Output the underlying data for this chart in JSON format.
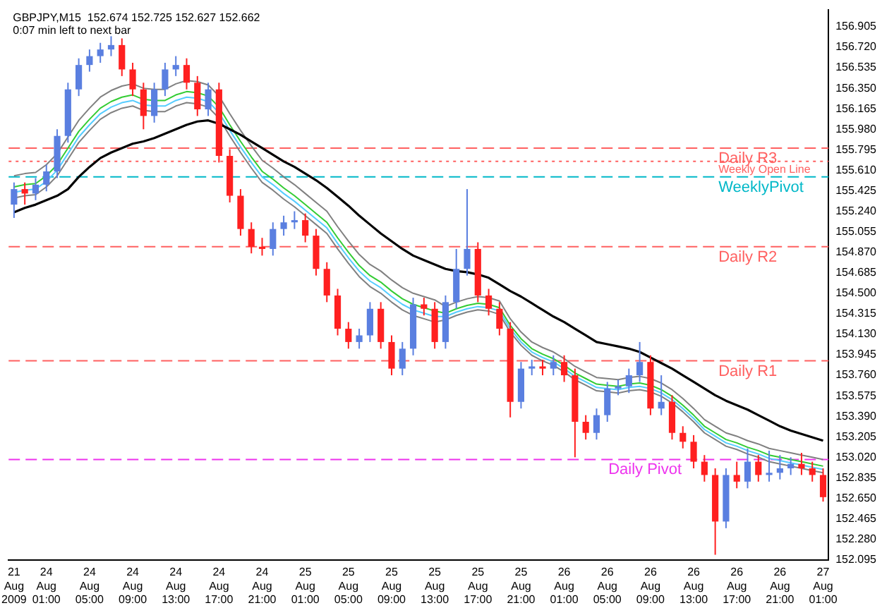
{
  "chart_data": {
    "type": "candlestick",
    "title": "GBPJPY,M15  152.674 152.725 152.627 152.662",
    "subtitle": "0:07 min left to next bar",
    "categories": [
      "21 Aug 2009",
      null,
      null,
      "24 Aug 01:00",
      null,
      null,
      null,
      "24 Aug 05:00",
      null,
      null,
      null,
      "24 Aug 09:00",
      null,
      null,
      null,
      "24 Aug 13:00",
      null,
      null,
      null,
      "24 Aug 17:00",
      null,
      null,
      null,
      "24 Aug 21:00",
      null,
      null,
      null,
      "25 Aug 01:00",
      null,
      null,
      null,
      "25 Aug 05:00",
      null,
      null,
      null,
      "25 Aug 09:00",
      null,
      null,
      null,
      "25 Aug 13:00",
      null,
      null,
      null,
      "25 Aug 17:00",
      null,
      null,
      null,
      "25 Aug 21:00",
      null,
      null,
      null,
      "26 Aug 01:00",
      null,
      null,
      null,
      "26 Aug 05:00",
      null,
      null,
      null,
      "26 Aug 09:00",
      null,
      null,
      null,
      "26 Aug 13:00",
      null,
      null,
      null,
      "26 Aug 17:00",
      null,
      null,
      null,
      "26 Aug 21:00",
      null,
      null,
      null,
      "27 Aug 01:00"
    ],
    "ohlc": [
      [
        155.3,
        155.5,
        155.18,
        155.44
      ],
      [
        155.44,
        155.5,
        155.3,
        155.4
      ],
      [
        155.4,
        155.54,
        155.34,
        155.48
      ],
      [
        155.48,
        155.66,
        155.42,
        155.6
      ],
      [
        155.6,
        155.98,
        155.54,
        155.92
      ],
      [
        155.92,
        156.4,
        155.86,
        156.34
      ],
      [
        156.34,
        156.62,
        156.28,
        156.56
      ],
      [
        156.56,
        156.7,
        156.5,
        156.64
      ],
      [
        156.64,
        156.76,
        156.58,
        156.7
      ],
      [
        156.7,
        156.82,
        156.64,
        156.74
      ],
      [
        156.74,
        156.8,
        156.46,
        156.52
      ],
      [
        156.52,
        156.58,
        156.28,
        156.34
      ],
      [
        156.34,
        156.4,
        155.98,
        156.1
      ],
      [
        156.1,
        156.4,
        156.04,
        156.34
      ],
      [
        156.34,
        156.58,
        156.28,
        156.52
      ],
      [
        156.52,
        156.64,
        156.46,
        156.56
      ],
      [
        156.56,
        156.62,
        156.34,
        156.4
      ],
      [
        156.4,
        156.46,
        156.1,
        156.16
      ],
      [
        156.16,
        156.4,
        156.1,
        156.34
      ],
      [
        156.34,
        156.4,
        155.68,
        155.74
      ],
      [
        155.74,
        155.8,
        155.32,
        155.38
      ],
      [
        155.38,
        155.44,
        155.02,
        155.08
      ],
      [
        155.08,
        155.14,
        154.86,
        154.92
      ],
      [
        154.92,
        155.0,
        154.84,
        154.9
      ],
      [
        154.9,
        155.14,
        154.84,
        155.08
      ],
      [
        155.08,
        155.2,
        155.02,
        155.14
      ],
      [
        155.14,
        155.24,
        155.08,
        155.16
      ],
      [
        155.16,
        155.22,
        154.96,
        155.02
      ],
      [
        155.02,
        155.08,
        154.66,
        154.72
      ],
      [
        154.72,
        154.78,
        154.42,
        154.48
      ],
      [
        154.48,
        154.54,
        154.12,
        154.18
      ],
      [
        154.18,
        154.24,
        154.0,
        154.06
      ],
      [
        154.06,
        154.18,
        154.0,
        154.12
      ],
      [
        154.12,
        154.42,
        154.06,
        154.36
      ],
      [
        154.36,
        154.42,
        154.0,
        154.06
      ],
      [
        154.06,
        154.12,
        153.76,
        153.82
      ],
      [
        153.82,
        154.06,
        153.76,
        154.0
      ],
      [
        154.0,
        154.46,
        153.94,
        154.4
      ],
      [
        154.4,
        154.46,
        154.3,
        154.36
      ],
      [
        154.36,
        154.42,
        154.0,
        154.06
      ],
      [
        154.06,
        154.48,
        154.0,
        154.42
      ],
      [
        154.42,
        154.9,
        154.36,
        154.72
      ],
      [
        154.72,
        155.44,
        154.66,
        154.9
      ],
      [
        154.9,
        154.96,
        154.42,
        154.48
      ],
      [
        154.48,
        154.54,
        154.3,
        154.36
      ],
      [
        154.36,
        154.42,
        154.12,
        154.18
      ],
      [
        154.18,
        154.24,
        153.38,
        153.52
      ],
      [
        153.52,
        153.88,
        153.46,
        153.82
      ],
      [
        153.82,
        153.9,
        153.76,
        153.84
      ],
      [
        153.84,
        153.9,
        153.76,
        153.82
      ],
      [
        153.82,
        153.94,
        153.76,
        153.88
      ],
      [
        153.88,
        153.94,
        153.7,
        153.76
      ],
      [
        153.76,
        153.82,
        153.02,
        153.34
      ],
      [
        153.34,
        153.4,
        153.18,
        153.24
      ],
      [
        153.24,
        153.46,
        153.18,
        153.4
      ],
      [
        153.4,
        153.7,
        153.34,
        153.64
      ],
      [
        153.64,
        153.72,
        153.58,
        153.66
      ],
      [
        153.66,
        153.82,
        153.6,
        153.76
      ],
      [
        153.76,
        154.06,
        153.7,
        153.88
      ],
      [
        153.88,
        153.94,
        153.4,
        153.46
      ],
      [
        153.46,
        153.76,
        153.4,
        153.52
      ],
      [
        153.52,
        153.58,
        153.18,
        153.24
      ],
      [
        153.24,
        153.3,
        153.1,
        153.16
      ],
      [
        153.16,
        153.22,
        152.92,
        152.98
      ],
      [
        152.98,
        153.04,
        152.8,
        152.86
      ],
      [
        152.86,
        152.92,
        152.14,
        152.44
      ],
      [
        152.44,
        152.92,
        152.38,
        152.86
      ],
      [
        152.86,
        152.98,
        152.74,
        152.8
      ],
      [
        152.8,
        153.1,
        152.74,
        152.98
      ],
      [
        152.98,
        153.04,
        152.8,
        152.86
      ],
      [
        152.86,
        153.08,
        152.8,
        152.88
      ],
      [
        152.88,
        153.04,
        152.82,
        152.92
      ],
      [
        152.92,
        153.02,
        152.86,
        152.96
      ],
      [
        152.96,
        153.06,
        152.86,
        152.92
      ],
      [
        152.92,
        152.98,
        152.8,
        152.86
      ],
      [
        152.86,
        152.92,
        152.62,
        152.66
      ]
    ],
    "colors": [
      "#5a7fe0",
      "#ff2020",
      "#5a7fe0",
      "#5a7fe0",
      "#5a7fe0",
      "#5a7fe0",
      "#5a7fe0",
      "#5a7fe0",
      "#5a7fe0",
      "#5a7fe0",
      "#ff2020",
      "#ff2020",
      "#ff2020",
      "#5a7fe0",
      "#5a7fe0",
      "#5a7fe0",
      "#ff2020",
      "#ff2020",
      "#5a7fe0",
      "#ff2020",
      "#ff2020",
      "#ff2020",
      "#ff2020",
      "#ff2020",
      "#5a7fe0",
      "#5a7fe0",
      "#5a7fe0",
      "#ff2020",
      "#ff2020",
      "#ff2020",
      "#ff2020",
      "#ff2020",
      "#5a7fe0",
      "#5a7fe0",
      "#ff2020",
      "#ff2020",
      "#5a7fe0",
      "#5a7fe0",
      "#ff2020",
      "#ff2020",
      "#5a7fe0",
      "#5a7fe0",
      "#5a7fe0",
      "#ff2020",
      "#ff2020",
      "#ff2020",
      "#ff2020",
      "#5a7fe0",
      "#5a7fe0",
      "#ff2020",
      "#5a7fe0",
      "#ff2020",
      "#ff2020",
      "#ff2020",
      "#5a7fe0",
      "#5a7fe0",
      "#5a7fe0",
      "#5a7fe0",
      "#5a7fe0",
      "#ff2020",
      "#5a7fe0",
      "#ff2020",
      "#ff2020",
      "#ff2020",
      "#ff2020",
      "#ff2020",
      "#5a7fe0",
      "#ff2020",
      "#5a7fe0",
      "#ff2020",
      "#5a7fe0",
      "#5a7fe0",
      "#5a7fe0",
      "#ff2020",
      "#ff2020",
      "#ff2020"
    ],
    "series": [
      {
        "type": "line",
        "color": "#000000",
        "values": [
          155.23,
          155.27,
          155.3,
          155.34,
          155.38,
          155.44,
          155.55,
          155.64,
          155.72,
          155.77,
          155.81,
          155.85,
          155.87,
          155.9,
          155.94,
          155.98,
          156.02,
          156.05,
          156.06,
          156.03,
          155.98,
          155.93,
          155.87,
          155.81,
          155.75,
          155.69,
          155.64,
          155.58,
          155.52,
          155.45,
          155.37,
          155.29,
          155.2,
          155.12,
          155.04,
          154.97,
          154.9,
          154.84,
          154.8,
          154.76,
          154.72,
          154.7,
          154.69,
          154.67,
          154.64,
          154.58,
          154.52,
          154.47,
          154.41,
          154.35,
          154.29,
          154.24,
          154.18,
          154.12,
          154.06,
          154.04,
          154.02,
          154.0,
          153.97,
          153.92,
          153.87,
          153.82,
          153.76,
          153.7,
          153.64,
          153.58,
          153.53,
          153.49,
          153.45,
          153.4,
          153.35,
          153.3,
          153.26,
          153.23,
          153.2,
          153.17
        ]
      },
      {
        "type": "line",
        "color": "#808080",
        "values": [
          155.56,
          155.58,
          155.59,
          155.66,
          155.76,
          155.91,
          156.06,
          156.17,
          156.27,
          156.33,
          156.37,
          156.39,
          156.35,
          156.34,
          156.34,
          156.39,
          156.42,
          156.41,
          156.38,
          156.28,
          156.12,
          155.97,
          155.83,
          155.7,
          155.63,
          155.55,
          155.48,
          155.4,
          155.32,
          155.24,
          155.1,
          154.97,
          154.85,
          154.76,
          154.7,
          154.62,
          154.55,
          154.5,
          154.47,
          154.44,
          154.38,
          154.42,
          154.45,
          154.47,
          154.46,
          154.43,
          154.27,
          154.15,
          154.06,
          154.01,
          153.97,
          153.91,
          153.84,
          153.79,
          153.74,
          153.73,
          153.72,
          153.74,
          153.75,
          153.73,
          153.69,
          153.63,
          153.55,
          153.46,
          153.36,
          153.3,
          153.24,
          153.21,
          153.17,
          153.14,
          153.1,
          153.08,
          153.06,
          153.04,
          153.02,
          153.0
        ]
      },
      {
        "type": "line",
        "color": "#33cc33",
        "values": [
          155.46,
          155.48,
          155.49,
          155.56,
          155.66,
          155.81,
          155.96,
          156.07,
          156.17,
          156.23,
          156.27,
          156.29,
          156.25,
          156.24,
          156.24,
          156.29,
          156.32,
          156.31,
          156.28,
          156.18,
          156.02,
          155.87,
          155.73,
          155.6,
          155.53,
          155.45,
          155.38,
          155.3,
          155.22,
          155.14,
          155.0,
          154.87,
          154.75,
          154.66,
          154.6,
          154.52,
          154.45,
          154.4,
          154.37,
          154.34,
          154.32,
          154.36,
          154.39,
          154.41,
          154.4,
          154.37,
          154.21,
          154.09,
          154.0,
          153.95,
          153.91,
          153.85,
          153.78,
          153.73,
          153.68,
          153.67,
          153.66,
          153.68,
          153.69,
          153.67,
          153.63,
          153.57,
          153.49,
          153.4,
          153.3,
          153.24,
          153.18,
          153.15,
          153.11,
          153.08,
          153.04,
          153.02,
          153.0,
          152.98,
          152.96,
          152.94
        ]
      },
      {
        "type": "line",
        "color": "#55ccff",
        "values": [
          155.41,
          155.43,
          155.44,
          155.51,
          155.61,
          155.76,
          155.91,
          156.02,
          156.12,
          156.18,
          156.22,
          156.24,
          156.2,
          156.19,
          156.19,
          156.24,
          156.27,
          156.26,
          156.23,
          156.13,
          155.97,
          155.82,
          155.68,
          155.55,
          155.48,
          155.4,
          155.33,
          155.25,
          155.17,
          155.09,
          154.95,
          154.82,
          154.7,
          154.61,
          154.55,
          154.47,
          154.4,
          154.35,
          154.32,
          154.29,
          154.29,
          154.33,
          154.36,
          154.38,
          154.37,
          154.34,
          154.18,
          154.06,
          153.97,
          153.92,
          153.88,
          153.82,
          153.75,
          153.7,
          153.65,
          153.64,
          153.63,
          153.65,
          153.66,
          153.64,
          153.6,
          153.54,
          153.46,
          153.37,
          153.27,
          153.21,
          153.15,
          153.12,
          153.08,
          153.05,
          153.01,
          152.99,
          152.97,
          152.95,
          152.93,
          152.91
        ]
      },
      {
        "type": "line",
        "color": "#808080",
        "values": [
          155.36,
          155.38,
          155.39,
          155.46,
          155.56,
          155.71,
          155.86,
          155.97,
          156.07,
          156.13,
          156.17,
          156.19,
          156.15,
          156.14,
          156.14,
          156.19,
          156.22,
          156.21,
          156.18,
          156.08,
          155.92,
          155.77,
          155.63,
          155.5,
          155.43,
          155.35,
          155.28,
          155.2,
          155.12,
          155.04,
          154.9,
          154.77,
          154.65,
          154.56,
          154.5,
          154.42,
          154.35,
          154.3,
          154.27,
          154.24,
          154.26,
          154.3,
          154.33,
          154.35,
          154.34,
          154.31,
          154.15,
          154.03,
          153.94,
          153.89,
          153.85,
          153.79,
          153.72,
          153.67,
          153.62,
          153.61,
          153.6,
          153.62,
          153.63,
          153.61,
          153.57,
          153.51,
          153.43,
          153.34,
          153.24,
          153.18,
          153.12,
          153.09,
          153.05,
          153.02,
          152.98,
          152.96,
          152.94,
          152.92,
          152.9,
          152.88
        ]
      }
    ],
    "ref_lines": [
      {
        "axis": "y",
        "value": 155.81,
        "label": "Daily R3",
        "color": "#ff6060",
        "line_style": "dashed"
      },
      {
        "axis": "y",
        "value": 155.69,
        "label": "Weekly Open Line",
        "color": "#ff6060",
        "line_style": "dotted"
      },
      {
        "axis": "y",
        "value": 155.55,
        "label": "WeeklyPivot",
        "color": "#00b8c8",
        "line_style": "dashed"
      },
      {
        "axis": "y",
        "value": 154.92,
        "label": "Daily R2",
        "color": "#ff6060",
        "line_style": "dashed"
      },
      {
        "axis": "y",
        "value": 153.89,
        "label": "Daily R1",
        "color": "#ff6060",
        "line_style": "dashed"
      },
      {
        "axis": "y",
        "value": 153.0,
        "label": "Daily Pivot",
        "color": "#ee33ee",
        "line_style": "dashed"
      }
    ],
    "ylim": [
      152.09,
      157.06
    ],
    "yticks": [
      {
        "value": 152.095,
        "label": "152.095"
      },
      {
        "value": 152.28,
        "label": "152.280"
      },
      {
        "value": 152.465,
        "label": "152.465"
      },
      {
        "value": 152.65,
        "label": "152.650"
      },
      {
        "value": 152.835,
        "label": "152.835"
      },
      {
        "value": 153.02,
        "label": "153.020"
      },
      {
        "value": 153.205,
        "label": "153.205"
      },
      {
        "value": 153.39,
        "label": "153.390"
      },
      {
        "value": 153.575,
        "label": "153.575"
      },
      {
        "value": 153.76,
        "label": "153.760"
      },
      {
        "value": 153.945,
        "label": "153.945"
      },
      {
        "value": 154.13,
        "label": "154.130"
      },
      {
        "value": 154.315,
        "label": "154.315"
      },
      {
        "value": 154.5,
        "label": "154.500"
      },
      {
        "value": 154.685,
        "label": "154.685"
      },
      {
        "value": 154.87,
        "label": "154.870"
      },
      {
        "value": 155.055,
        "label": "155.055"
      },
      {
        "value": 155.24,
        "label": "155.240"
      },
      {
        "value": 155.425,
        "label": "155.425"
      },
      {
        "value": 155.61,
        "label": "155.610"
      },
      {
        "value": 155.795,
        "label": "155.795"
      },
      {
        "value": 155.98,
        "label": "155.980"
      },
      {
        "value": 156.165,
        "label": "156.165"
      },
      {
        "value": 156.35,
        "label": "156.350"
      },
      {
        "value": 156.535,
        "label": "156.535"
      },
      {
        "value": 156.72,
        "label": "156.720"
      },
      {
        "value": 156.905,
        "label": "156.905"
      }
    ],
    "grid": false,
    "legend": false
  }
}
